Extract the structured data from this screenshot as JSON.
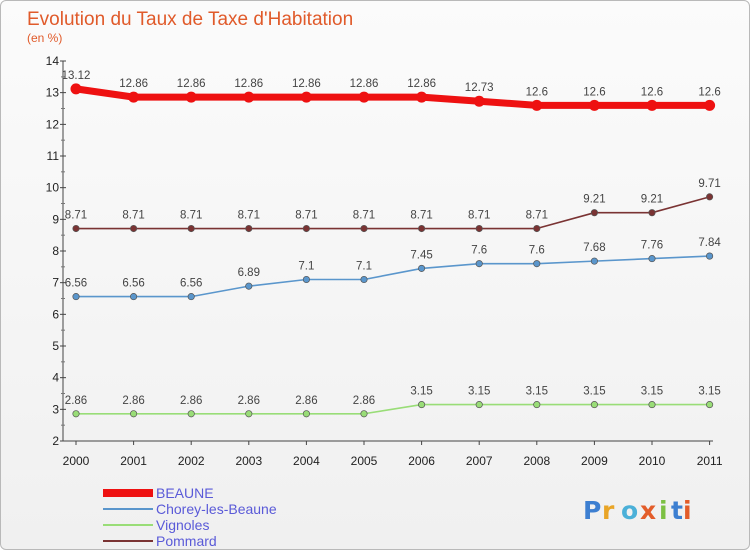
{
  "chart_data": {
    "type": "line",
    "title": "Evolution du Taux de Taxe d'Habitation",
    "subtitle": "(en %)",
    "x": [
      "2000",
      "2001",
      "2002",
      "2003",
      "2004",
      "2005",
      "2006",
      "2007",
      "2008",
      "2009",
      "2010",
      "2011"
    ],
    "ylim": [
      2,
      14
    ],
    "yticks": [
      2,
      3,
      4,
      5,
      6,
      7,
      8,
      9,
      10,
      11,
      12,
      13,
      14
    ],
    "grid": false,
    "legend_position": "bottom-left",
    "series": [
      {
        "name": "BEAUNE",
        "color": "#ee1111",
        "values": [
          13.12,
          12.86,
          12.86,
          12.86,
          12.86,
          12.86,
          12.86,
          12.73,
          12.6,
          12.6,
          12.6,
          12.6
        ],
        "labels": [
          "13.12",
          "12.86",
          "12.86",
          "12.86",
          "12.86",
          "12.86",
          "12.86",
          "12.73",
          "12.6",
          "12.6",
          "12.6",
          "12.6"
        ]
      },
      {
        "name": "Chorey-les-Beaune",
        "color": "#5a96cc",
        "values": [
          6.56,
          6.56,
          6.56,
          6.89,
          7.1,
          7.1,
          7.45,
          7.6,
          7.6,
          7.68,
          7.76,
          7.84
        ],
        "labels": [
          "6.56",
          "6.56",
          "6.56",
          "6.89",
          "7.1",
          "7.1",
          "7.45",
          "7.6",
          "7.6",
          "7.68",
          "7.76",
          "7.84"
        ]
      },
      {
        "name": "Vignoles",
        "color": "#99dd77",
        "values": [
          2.86,
          2.86,
          2.86,
          2.86,
          2.86,
          2.86,
          3.15,
          3.15,
          3.15,
          3.15,
          3.15,
          3.15
        ],
        "labels": [
          "2.86",
          "2.86",
          "2.86",
          "2.86",
          "2.86",
          "2.86",
          "3.15",
          "3.15",
          "3.15",
          "3.15",
          "3.15",
          "3.15"
        ]
      },
      {
        "name": "Pommard",
        "color": "#7a3333",
        "values": [
          8.71,
          8.71,
          8.71,
          8.71,
          8.71,
          8.71,
          8.71,
          8.71,
          8.71,
          9.21,
          9.21,
          9.71
        ],
        "labels": [
          "8.71",
          "8.71",
          "8.71",
          "8.71",
          "8.71",
          "8.71",
          "8.71",
          "8.71",
          "8.71",
          "9.21",
          "9.21",
          "9.71"
        ]
      }
    ]
  },
  "brand": {
    "logo_text": "Proxiti"
  }
}
